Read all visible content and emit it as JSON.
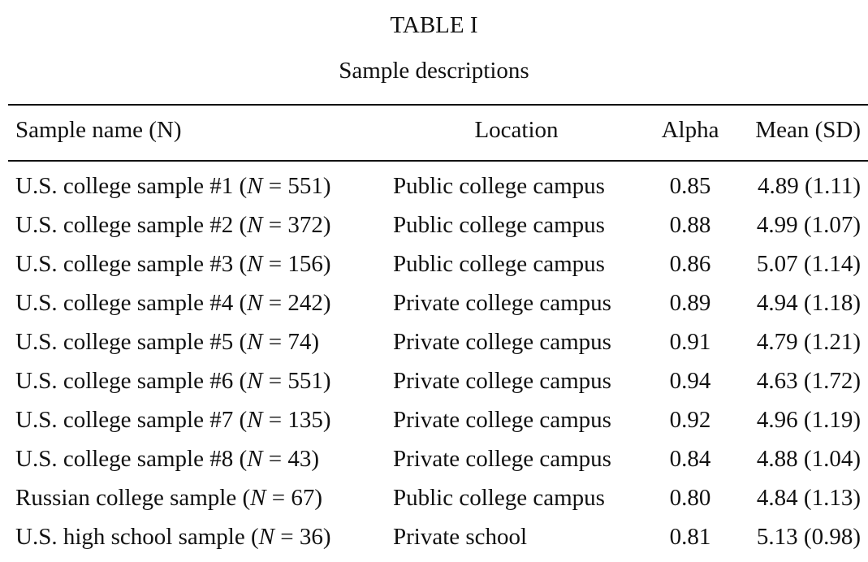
{
  "table": {
    "label": "TABLE I",
    "title": "Sample descriptions",
    "headers": {
      "name": "Sample name (N)",
      "location": "Location",
      "alpha": "Alpha",
      "mean": "Mean (SD)"
    },
    "n_symbol": "N",
    "rows": [
      {
        "name": "U.S. college sample #1",
        "n": "551",
        "location": "Public college campus",
        "alpha": "0.85",
        "mean": "4.89 (1.11)"
      },
      {
        "name": "U.S. college sample #2",
        "n": "372",
        "location": "Public college campus",
        "alpha": "0.88",
        "mean": "4.99 (1.07)"
      },
      {
        "name": "U.S. college sample #3",
        "n": "156",
        "location": "Public college campus",
        "alpha": "0.86",
        "mean": "5.07 (1.14)"
      },
      {
        "name": "U.S. college sample #4",
        "n": "242",
        "location": "Private college campus",
        "alpha": "0.89",
        "mean": "4.94 (1.18)"
      },
      {
        "name": "U.S. college sample #5",
        "n": "74",
        "location": "Private college campus",
        "alpha": "0.91",
        "mean": "4.79 (1.21)"
      },
      {
        "name": "U.S. college sample #6",
        "n": "551",
        "location": "Private college campus",
        "alpha": "0.94",
        "mean": "4.63 (1.72)"
      },
      {
        "name": "U.S. college sample #7",
        "n": "135",
        "location": "Private college campus",
        "alpha": "0.92",
        "mean": "4.96 (1.19)"
      },
      {
        "name": "U.S. college sample #8",
        "n": "43",
        "location": "Private college campus",
        "alpha": "0.84",
        "mean": "4.88 (1.04)"
      },
      {
        "name": "Russian college sample",
        "n": "67",
        "location": "Public college campus",
        "alpha": "0.80",
        "mean": "4.84 (1.13)"
      },
      {
        "name": "U.S. high school sample",
        "n": "36",
        "location": "Private school",
        "alpha": "0.81",
        "mean": "5.13 (0.98)"
      }
    ]
  }
}
